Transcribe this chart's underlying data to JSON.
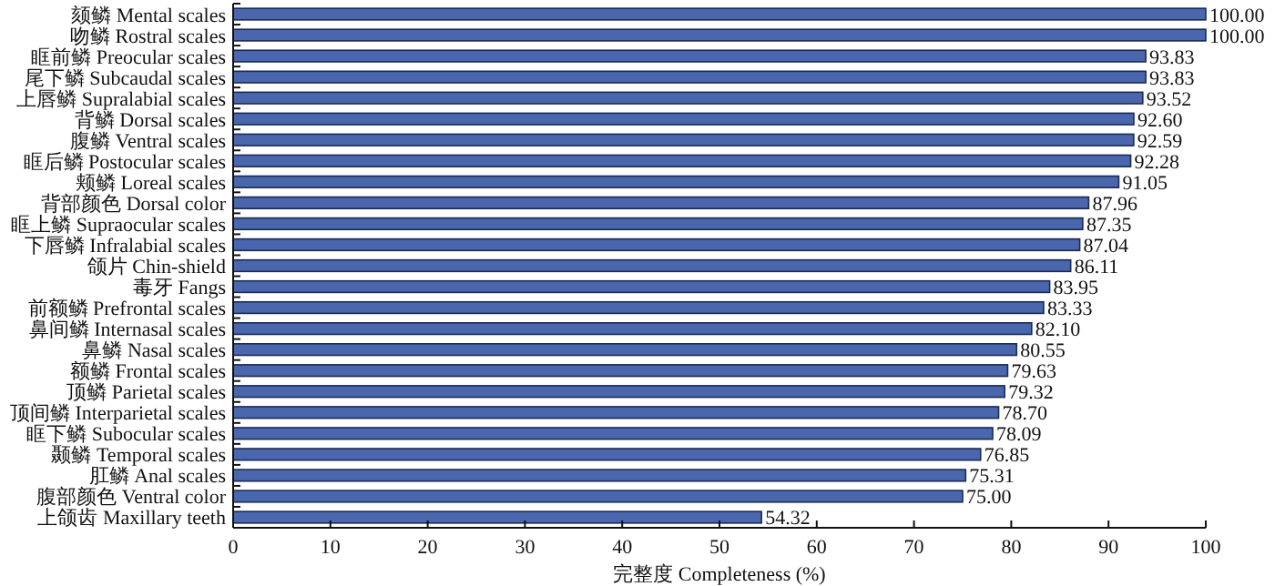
{
  "chart_data": {
    "type": "bar",
    "orientation": "horizontal",
    "xlabel": "完整度 Completeness (%)",
    "categories": [
      "颏鳞 Mental scales",
      "吻鳞 Rostral scales",
      "眶前鳞 Preocular scales",
      "尾下鳞 Subcaudal scales",
      "上唇鳞 Supralabial scales",
      "背鳞 Dorsal scales",
      "腹鳞 Ventral scales",
      "眶后鳞 Postocular scales",
      "颊鳞 Loreal scales",
      "背部颜色 Dorsal color",
      "眶上鳞 Supraocular scales",
      "下唇鳞 Infralabial scales",
      "颌片 Chin-shield",
      "毒牙 Fangs",
      "前额鳞 Prefrontal scales",
      "鼻间鳞 Internasal scales",
      "鼻鳞 Nasal scales",
      "额鳞 Frontal scales",
      "顶鳞 Parietal scales",
      "顶间鳞 Interparietal scales",
      "眶下鳞 Subocular scales",
      "颞鳞 Temporal scales",
      "肛鳞 Anal scales",
      "腹部颜色 Ventral color",
      "上颌齿 Maxillary teeth"
    ],
    "values": [
      100,
      100,
      93.83,
      93.83,
      93.52,
      92.6,
      92.59,
      92.28,
      91.05,
      87.96,
      87.35,
      87.04,
      86.11,
      83.95,
      83.33,
      82.1,
      80.55,
      79.63,
      79.32,
      78.7,
      78.09,
      76.85,
      75.31,
      75,
      54.32
    ],
    "value_labels": [
      "100.00",
      "100.00",
      "93.83",
      "93.83",
      "93.52",
      "92.60",
      "92.59",
      "92.28",
      "91.05",
      "87.96",
      "87.35",
      "87.04",
      "86.11",
      "83.95",
      "83.33",
      "82.10",
      "80.55",
      "79.63",
      "79.32",
      "78.70",
      "78.09",
      "76.85",
      "75.31",
      "75.00",
      "54.32"
    ],
    "color": "#4a66ac",
    "xlim": [
      0,
      100
    ],
    "xticks": [
      0,
      10,
      20,
      30,
      40,
      50,
      60,
      70,
      80,
      90,
      100
    ],
    "grid": false
  }
}
